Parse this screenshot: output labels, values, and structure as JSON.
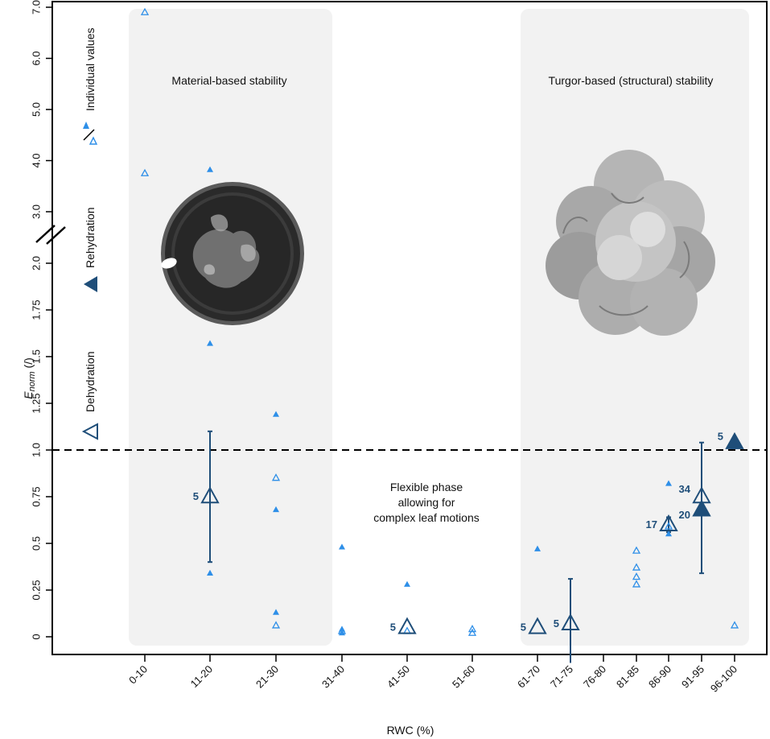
{
  "chart_data": {
    "type": "scatter",
    "xlabel": "RWC (%)",
    "ylabel_main": "E",
    "ylabel_sub": "norm",
    "ylabel_unit": " (/)",
    "categories": [
      "0-10",
      "11-20",
      "21-30",
      "31-40",
      "41-50",
      "51-60",
      "61-70",
      "71-75",
      "76-80",
      "81-85",
      "86-90",
      "91-95",
      "96-100"
    ],
    "y_ticks_lower": [
      "0",
      "0.25",
      "0.5",
      "0.75",
      "1.0",
      "1.25",
      "1.5",
      "1.75",
      "2.0"
    ],
    "y_ticks_upper": [
      "3.0",
      "4.0",
      "5.0",
      "6.0",
      "7.0"
    ],
    "reference_line": 1.0,
    "regions": [
      {
        "label": "Material-based stability",
        "from": "0-10",
        "to": "31-40"
      },
      {
        "label": "Turgor-based (structural) stability",
        "from": "61-70",
        "to": "96-100"
      }
    ],
    "annotation": [
      "Flexible phase",
      "allowing for",
      "complex leaf motions"
    ],
    "legend": {
      "individual": "Individual values",
      "rehydration": "Rehydration",
      "dehydration": "Dehydration"
    },
    "colors": {
      "individual": "#2e8fe8",
      "mean": "#1f4e79",
      "panel": "#f2f2f2"
    },
    "series": [
      {
        "name": "Dehydration (individual)",
        "marker": "open-triangle",
        "points": [
          {
            "x": "0-10",
            "y": 6.9
          },
          {
            "x": "0-10",
            "y": 3.75
          },
          {
            "x": "21-30",
            "y": 0.85
          },
          {
            "x": "21-30",
            "y": 0.06
          },
          {
            "x": "31-40",
            "y": 0.03
          },
          {
            "x": "41-50",
            "y": 0.03
          },
          {
            "x": "51-60",
            "y": 0.04
          },
          {
            "x": "51-60",
            "y": 0.02
          },
          {
            "x": "81-85",
            "y": 0.46
          },
          {
            "x": "81-85",
            "y": 0.37
          },
          {
            "x": "81-85",
            "y": 0.32
          },
          {
            "x": "81-85",
            "y": 0.28
          },
          {
            "x": "86-90",
            "y": 0.59
          },
          {
            "x": "96-100",
            "y": 1.02
          },
          {
            "x": "96-100",
            "y": 0.06
          }
        ]
      },
      {
        "name": "Rehydration (individual)",
        "marker": "filled-triangle",
        "points": [
          {
            "x": "11-20",
            "y": 3.82
          },
          {
            "x": "11-20",
            "y": 1.57
          },
          {
            "x": "11-20",
            "y": 0.34
          },
          {
            "x": "21-30",
            "y": 1.19
          },
          {
            "x": "21-30",
            "y": 0.68
          },
          {
            "x": "21-30",
            "y": 0.13
          },
          {
            "x": "31-40",
            "y": 0.48
          },
          {
            "x": "31-40",
            "y": 0.04
          },
          {
            "x": "31-40",
            "y": 0.02
          },
          {
            "x": "41-50",
            "y": 0.28
          },
          {
            "x": "61-70",
            "y": 0.47
          },
          {
            "x": "86-90",
            "y": 0.82
          },
          {
            "x": "86-90",
            "y": 0.55
          },
          {
            "x": "96-100",
            "y": 1.05
          }
        ]
      },
      {
        "name": "Dehydration (mean)",
        "marker": "large-open-triangle",
        "points": [
          {
            "x": "11-20",
            "y": 0.75,
            "err_low": 0.4,
            "err_high": 1.1,
            "n": "5"
          },
          {
            "x": "41-50",
            "y": 0.05,
            "n": "5"
          },
          {
            "x": "61-70",
            "y": 0.05,
            "n": "5"
          },
          {
            "x": "71-75",
            "y": 0.07,
            "err_low": -0.2,
            "err_high": 0.31,
            "n": "5"
          },
          {
            "x": "86-90",
            "y": 0.6,
            "err_low": 0.56,
            "err_high": 0.64,
            "n": "17"
          },
          {
            "x": "91-95",
            "y": 0.75,
            "err_low": 0.34,
            "err_high": 1.04,
            "n": "34"
          }
        ]
      },
      {
        "name": "Rehydration (mean)",
        "marker": "large-filled-triangle",
        "points": [
          {
            "x": "91-95",
            "y": 0.68,
            "n": "20"
          },
          {
            "x": "96-100",
            "y": 1.04,
            "n": "5"
          }
        ]
      }
    ]
  }
}
